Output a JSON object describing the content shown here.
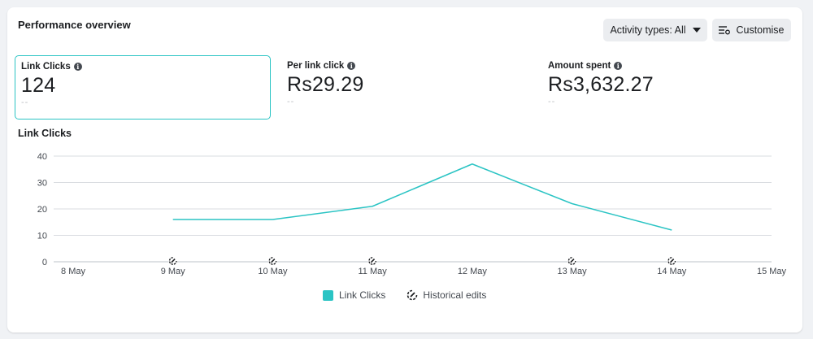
{
  "card": {
    "title": "Performance overview"
  },
  "toolbar": {
    "activity_label": "Activity types: All",
    "customise_label": "Customise"
  },
  "metrics": [
    {
      "label": "Link Clicks",
      "value": "124",
      "sub": "--",
      "selected": true
    },
    {
      "label": "Per link click",
      "value": "Rs29.29",
      "sub": "--",
      "selected": false
    },
    {
      "label": "Amount spent",
      "value": "Rs3,632.27",
      "sub": "--",
      "selected": false
    }
  ],
  "colors": {
    "accent": "#2bc4c4"
  },
  "chart_data": {
    "type": "line",
    "title": "Link Clicks",
    "x": [
      "8 May",
      "9 May",
      "10 May",
      "11 May",
      "12 May",
      "13 May",
      "14 May",
      "15 May"
    ],
    "series": [
      {
        "name": "Link Clicks",
        "values": [
          null,
          16,
          16,
          21,
          37,
          22,
          12,
          null
        ]
      }
    ],
    "yticks": [
      0,
      10,
      20,
      30,
      40
    ],
    "ylim": [
      0,
      40
    ],
    "grid": true,
    "historical_edit_markers": [
      "9 May",
      "10 May",
      "11 May",
      "13 May",
      "14 May"
    ],
    "legend": [
      "Link Clicks",
      "Historical edits"
    ],
    "legend_position": "bottom"
  }
}
